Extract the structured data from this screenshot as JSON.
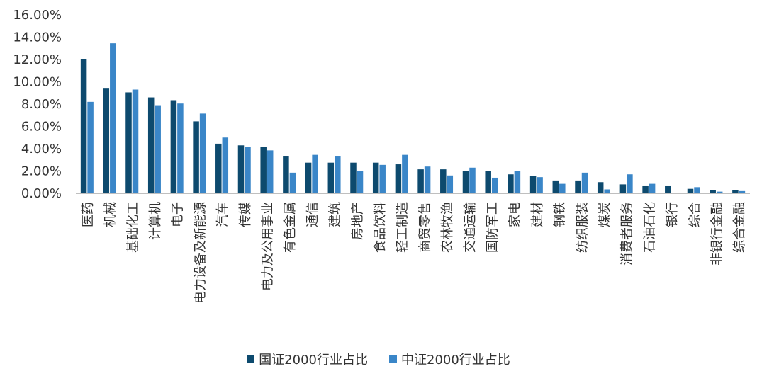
{
  "chart_data": {
    "type": "bar",
    "title": "",
    "xlabel": "",
    "ylabel": "",
    "ylim": [
      0,
      16
    ],
    "yticks": [
      0,
      2,
      4,
      6,
      8,
      10,
      12,
      14,
      16
    ],
    "ytick_labels": [
      "0.00%",
      "2.00%",
      "4.00%",
      "6.00%",
      "8.00%",
      "10.00%",
      "12.00%",
      "14.00%",
      "16.00%"
    ],
    "grid": false,
    "legend_position": "bottom",
    "categories": [
      "医药",
      "机械",
      "基础化工",
      "计算机",
      "电子",
      "电力设备及新能源",
      "汽车",
      "传媒",
      "电力及公用事业",
      "有色金属",
      "通信",
      "建筑",
      "房地产",
      "食品饮料",
      "轻工制造",
      "商贸零售",
      "农林牧渔",
      "交通运输",
      "国防军工",
      "家电",
      "建材",
      "钢铁",
      "纺织服装",
      "煤炭",
      "消费者服务",
      "石油石化",
      "银行",
      "综合",
      "非银行金融",
      "综合金融"
    ],
    "series": [
      {
        "name": "国证2000行业占比",
        "color": "#0d4a6e",
        "values": [
          12.05,
          9.45,
          9.05,
          8.6,
          8.35,
          6.45,
          4.45,
          4.3,
          4.15,
          3.3,
          2.75,
          2.75,
          2.75,
          2.75,
          2.6,
          2.15,
          2.15,
          2.0,
          2.0,
          1.7,
          1.55,
          1.15,
          1.15,
          1.0,
          0.8,
          0.7,
          0.7,
          0.4,
          0.3,
          0.3
        ]
      },
      {
        "name": "中证2000行业占比",
        "color": "#3a86c8",
        "values": [
          8.2,
          13.45,
          9.3,
          7.9,
          8.05,
          7.15,
          5.0,
          4.15,
          3.85,
          1.85,
          3.45,
          3.3,
          2.0,
          2.55,
          3.45,
          2.4,
          1.6,
          2.3,
          1.4,
          2.0,
          1.45,
          0.85,
          1.85,
          0.35,
          1.7,
          0.85,
          0.0,
          0.55,
          0.15,
          0.2
        ]
      }
    ]
  }
}
